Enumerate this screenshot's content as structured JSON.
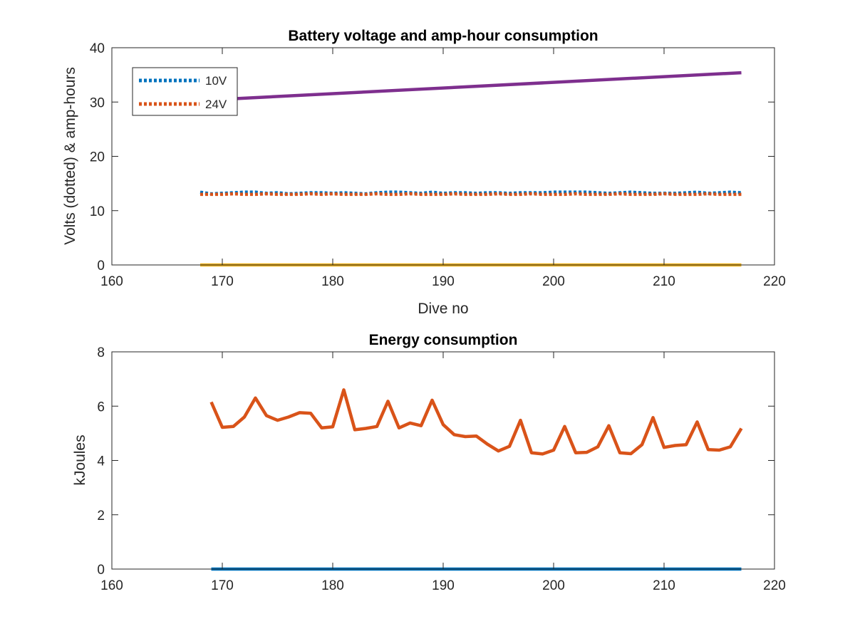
{
  "chart_data": [
    {
      "type": "line",
      "title": "Battery voltage and amp-hour consumption",
      "xlabel": "Dive no",
      "ylabel": "Volts (dotted) & amp-hours",
      "xlim": [
        160,
        220
      ],
      "ylim": [
        0,
        40
      ],
      "xticks": [
        "160",
        "170",
        "180",
        "190",
        "200",
        "210",
        "220"
      ],
      "yticks": [
        "0",
        "10",
        "20",
        "30",
        "40"
      ],
      "grid": false,
      "legend_position": "top-left",
      "series": [
        {
          "name": "10V",
          "style": "dotted",
          "color": "#0072BD",
          "x": [
            168,
            169,
            170,
            171,
            172,
            173,
            174,
            175,
            176,
            177,
            178,
            179,
            180,
            181,
            182,
            183,
            184,
            185,
            186,
            187,
            188,
            189,
            190,
            191,
            192,
            193,
            194,
            195,
            196,
            197,
            198,
            199,
            200,
            201,
            202,
            203,
            204,
            205,
            206,
            207,
            208,
            209,
            210,
            211,
            212,
            213,
            214,
            215,
            216,
            217
          ],
          "y": [
            13.4,
            13.1,
            13.2,
            13.3,
            13.4,
            13.4,
            13.2,
            13.3,
            13.1,
            13.2,
            13.3,
            13.3,
            13.2,
            13.3,
            13.2,
            13.1,
            13.3,
            13.4,
            13.4,
            13.3,
            13.2,
            13.4,
            13.2,
            13.3,
            13.3,
            13.2,
            13.3,
            13.3,
            13.2,
            13.3,
            13.3,
            13.3,
            13.4,
            13.4,
            13.4,
            13.4,
            13.3,
            13.2,
            13.3,
            13.4,
            13.3,
            13.2,
            13.2,
            13.2,
            13.3,
            13.4,
            13.2,
            13.3,
            13.4,
            13.3
          ]
        },
        {
          "name": "24V",
          "style": "dotted",
          "color": "#D95319",
          "x": [
            168,
            169,
            170,
            171,
            172,
            173,
            174,
            175,
            176,
            177,
            178,
            179,
            180,
            181,
            182,
            183,
            184,
            185,
            186,
            187,
            188,
            189,
            190,
            191,
            192,
            193,
            194,
            195,
            196,
            197,
            198,
            199,
            200,
            201,
            202,
            203,
            204,
            205,
            206,
            207,
            208,
            209,
            210,
            211,
            212,
            213,
            214,
            215,
            216,
            217
          ],
          "y": [
            13.0,
            13.0,
            13.0,
            13.1,
            13.0,
            13.0,
            13.1,
            13.0,
            13.0,
            13.0,
            13.1,
            13.0,
            13.1,
            13.0,
            13.0,
            13.0,
            13.1,
            13.0,
            13.0,
            13.1,
            13.0,
            13.0,
            13.0,
            13.1,
            13.0,
            13.0,
            13.0,
            13.1,
            13.0,
            13.0,
            13.1,
            13.0,
            13.0,
            13.0,
            13.1,
            13.0,
            13.0,
            13.0,
            13.1,
            13.0,
            13.0,
            13.0,
            13.1,
            13.0,
            13.0,
            13.0,
            13.1,
            13.0,
            13.0,
            13.0
          ]
        },
        {
          "style": "solid",
          "color": "#EDB120",
          "x": [
            168,
            217
          ],
          "y": [
            0,
            0
          ]
        },
        {
          "style": "solid",
          "color": "#7E2F8E",
          "x": [
            168,
            217
          ],
          "y": [
            30.3,
            35.4
          ]
        }
      ]
    },
    {
      "type": "line",
      "title": "Energy consumption",
      "xlabel": "",
      "ylabel": "kJoules",
      "xlim": [
        160,
        220
      ],
      "ylim": [
        0,
        8
      ],
      "xticks": [
        "160",
        "170",
        "180",
        "190",
        "200",
        "210",
        "220"
      ],
      "yticks": [
        "0",
        "2",
        "4",
        "6",
        "8"
      ],
      "grid": false,
      "series": [
        {
          "style": "solid",
          "color": "#0072BD",
          "x": [
            169,
            217
          ],
          "y": [
            0,
            0
          ]
        },
        {
          "style": "solid",
          "color": "#D95319",
          "x": [
            169,
            170,
            171,
            172,
            173,
            174,
            175,
            176,
            177,
            178,
            179,
            180,
            181,
            182,
            183,
            184,
            185,
            186,
            187,
            188,
            189,
            190,
            191,
            192,
            193,
            194,
            195,
            196,
            197,
            198,
            199,
            200,
            201,
            202,
            203,
            204,
            205,
            206,
            207,
            208,
            209,
            210,
            211,
            212,
            213,
            214,
            215,
            216,
            217
          ],
          "y": [
            6.15,
            5.22,
            5.25,
            5.6,
            6.3,
            5.65,
            5.48,
            5.6,
            5.76,
            5.74,
            5.2,
            5.24,
            6.6,
            5.13,
            5.18,
            5.25,
            6.18,
            5.2,
            5.38,
            5.28,
            6.22,
            5.32,
            4.95,
            4.88,
            4.9,
            4.6,
            4.35,
            4.52,
            5.48,
            4.28,
            4.24,
            4.38,
            5.25,
            4.28,
            4.3,
            4.5,
            5.28,
            4.28,
            4.25,
            4.58,
            5.58,
            4.48,
            4.55,
            4.58,
            5.42,
            4.4,
            4.38,
            4.5,
            5.18
          ]
        }
      ]
    }
  ]
}
